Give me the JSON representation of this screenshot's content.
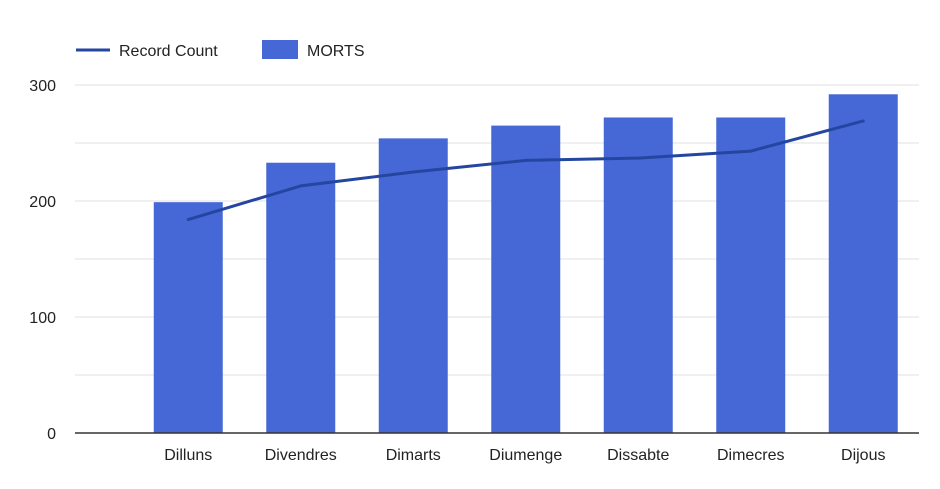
{
  "chart_data": {
    "type": "bar",
    "title": "",
    "xlabel": "",
    "ylabel": "",
    "categories": [
      "Dilluns",
      "Divendres",
      "Dimarts",
      "Diumenge",
      "Dissabte",
      "Dimecres",
      "Dijous"
    ],
    "series": [
      {
        "name": "MORTS",
        "type": "bar",
        "color": "#4668d6",
        "values": [
          199,
          233,
          254,
          265,
          272,
          272,
          292
        ]
      },
      {
        "name": "Record Count",
        "type": "line",
        "color": "#2446a1",
        "values": [
          184,
          213,
          225,
          235,
          237,
          243,
          269
        ]
      }
    ],
    "ylim": [
      0,
      300
    ],
    "yticks": [
      0,
      100,
      200,
      300
    ],
    "grid": true,
    "legend": "top-left"
  }
}
